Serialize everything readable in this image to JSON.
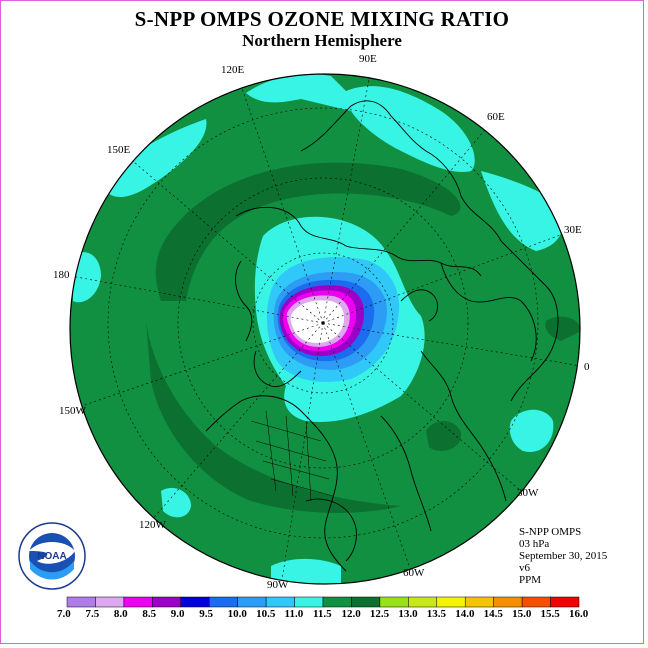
{
  "title": "S-NPP OMPS OZONE MIXING RATIO",
  "subtitle": "Northern Hemisphere",
  "longitude_labels": [
    "90E",
    "60E",
    "30E",
    "0",
    "30W",
    "60W",
    "90W",
    "120W",
    "150W",
    "180",
    "150E",
    "120E"
  ],
  "info": {
    "instrument": "S-NPP OMPS",
    "pressure": "03 hPa",
    "date": "September 30, 2015",
    "version": "v6",
    "units": "PPM"
  },
  "logo": {
    "text": "NOAA",
    "ring_text": "NATIONAL OCEANIC AND ATMOSPHERIC ADMINISTRATION · U.S. DEPARTMENT OF COMMERCE"
  },
  "colorbar": {
    "labels": [
      "7.0",
      "7.5",
      "8.0",
      "8.5",
      "9.0",
      "9.5",
      "10.0",
      "10.5",
      "11.0",
      "11.5",
      "12.0",
      "12.5",
      "13.0",
      "13.5",
      "14.0",
      "14.5",
      "15.0",
      "15.5",
      "16.0"
    ],
    "colors": [
      "#b07ce8",
      "#dca8f0",
      "#f000f0",
      "#9c00c8",
      "#0000e0",
      "#1c6cf0",
      "#2c9cf4",
      "#30c8f8",
      "#38f4e4",
      "#109040",
      "#0c7030",
      "#98e018",
      "#c8e818",
      "#f4f400",
      "#f4c400",
      "#f49000",
      "#f45000",
      "#f40000",
      "#8c5030"
    ]
  },
  "palette": {
    "ocean_green": "#109040",
    "dark_green": "#0c7030",
    "cyan": "#38f4e4",
    "blue": "#2c9cf4",
    "purple": "#9c00c8",
    "magenta": "#f000f0",
    "light_purple": "#dca8f0"
  }
}
